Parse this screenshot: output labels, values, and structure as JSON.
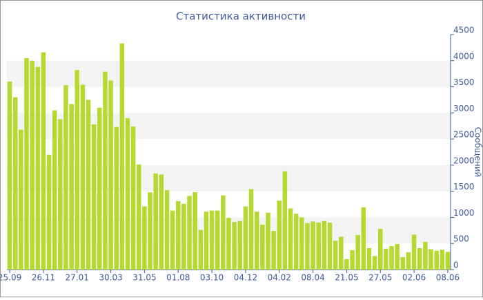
{
  "chart_data": {
    "type": "bar",
    "title": "Статистика активности",
    "y_label": "Сообщений",
    "categories": [
      "25.09",
      null,
      null,
      null,
      null,
      null,
      "26.11",
      null,
      null,
      null,
      null,
      null,
      "27.01",
      null,
      null,
      null,
      null,
      null,
      "30.03",
      null,
      null,
      null,
      null,
      null,
      "31.05",
      null,
      null,
      null,
      null,
      null,
      "01.08",
      null,
      null,
      null,
      null,
      null,
      "03.10",
      null,
      null,
      null,
      null,
      null,
      "04.12",
      null,
      null,
      null,
      null,
      null,
      "04.02",
      null,
      null,
      null,
      null,
      null,
      "08.04",
      null,
      null,
      null,
      null,
      null,
      "21.05",
      null,
      null,
      null,
      null,
      null,
      "27.05",
      null,
      null,
      null,
      null,
      null,
      "02.06",
      null,
      null,
      null,
      null,
      null,
      "08.06"
    ],
    "values": [
      3600,
      3300,
      2680,
      4050,
      4000,
      3880,
      4160,
      2200,
      3050,
      2880,
      3530,
      3170,
      3820,
      3540,
      3250,
      2780,
      3100,
      3790,
      3620,
      2730,
      4330,
      2900,
      2740,
      2010,
      1210,
      1480,
      1840,
      1820,
      1520,
      1130,
      1310,
      1260,
      1410,
      1480,
      760,
      1110,
      1130,
      1130,
      1420,
      990,
      910,
      930,
      1210,
      1540,
      1110,
      860,
      1090,
      740,
      1320,
      1880,
      1170,
      1070,
      1000,
      890,
      920,
      900,
      930,
      900,
      550,
      630,
      200,
      370,
      660,
      1190,
      410,
      260,
      780,
      400,
      450,
      490,
      240,
      330,
      670,
      410,
      530,
      390,
      360,
      380,
      340
    ],
    "color": "#b5d930",
    "ylim": [
      0,
      4500
    ],
    "yticks": [
      0,
      500,
      1000,
      1500,
      2000,
      2500,
      3000,
      3500,
      4000,
      4500
    ],
    "y_axis_side": "right",
    "alternating_bands": true
  }
}
